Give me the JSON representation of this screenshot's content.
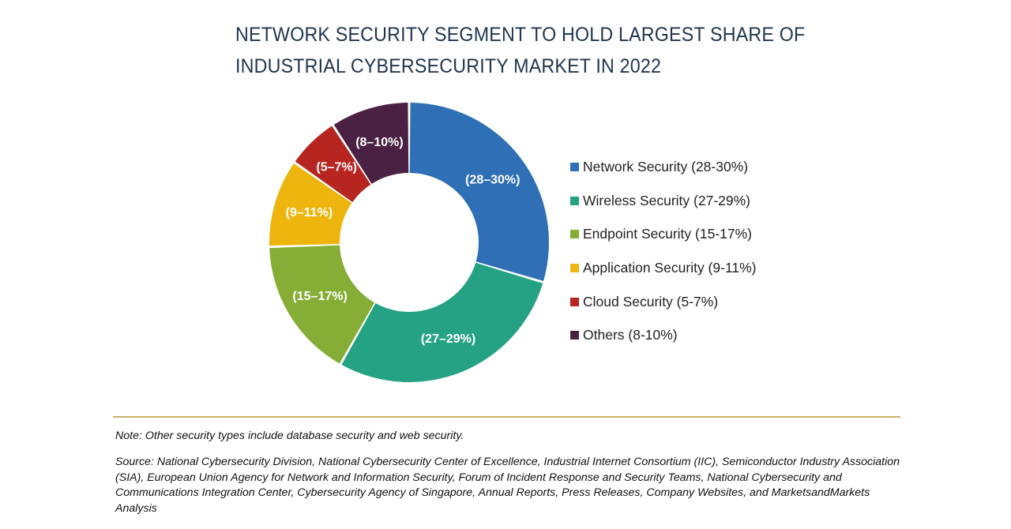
{
  "chart_data": {
    "type": "pie",
    "title": "NETWORK SECURITY SEGMENT TO HOLD LARGEST SHARE OF INDUSTRIAL CYBERSECURITY MARKET IN 2022",
    "donut": true,
    "legend_position": "right",
    "slices": [
      {
        "category": "Network Security",
        "legend": "Network Security (28-30%)",
        "label": "(28–30%)",
        "value": 29,
        "color": "#2e6fb5"
      },
      {
        "category": "Wireless Security",
        "legend": "Wireless Security (27-29%)",
        "label": "(27–29%)",
        "value": 28,
        "color": "#25a284"
      },
      {
        "category": "Endpoint Security",
        "legend": "Endpoint Security (15-17%)",
        "label": "(15–17%)",
        "value": 16,
        "color": "#86ae36"
      },
      {
        "category": "Application Security",
        "legend": "Application Security (9-11%)",
        "label": "(9–11%)",
        "value": 10,
        "color": "#edb50d"
      },
      {
        "category": "Cloud Security",
        "legend": "Cloud Security (5-7%)",
        "label": "(5–7%)",
        "value": 6,
        "color": "#b72520"
      },
      {
        "category": "Others",
        "legend": "Others (8-10%)",
        "label": "(8–10%)",
        "value": 9,
        "color": "#4b2143"
      }
    ]
  },
  "note": "Note: Other security types include database security and web security.",
  "source": "Source: National Cybersecurity Division, National Cybersecurity Center of Excellence, Industrial Internet Consortium (IIC), Semiconductor Industry Association (SIA), European Union Agency for Network and Information Security, Forum of Incident Response and Security Teams, National Cybersecurity and Communications Integration Center, Cybersecurity Agency of Singapore, Annual Reports, Press Releases, Company Websites, and MarketsandMarkets Analysis"
}
